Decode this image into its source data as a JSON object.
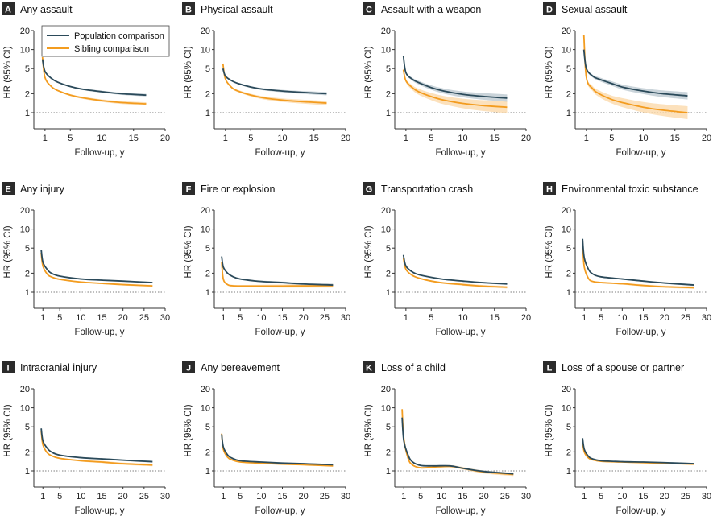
{
  "colors": {
    "population": "#2b4a5a",
    "sibling": "#f39c1f",
    "population_band": "#b8c6cd",
    "sibling_band": "#fbd7a6",
    "letter_box": "#2b2b2b",
    "axis": "#333333"
  },
  "legend": {
    "panel": "A",
    "items": [
      {
        "name": "Population comparison",
        "color": "#2b4a5a"
      },
      {
        "name": "Sibling comparison",
        "color": "#f39c1f"
      }
    ]
  },
  "chart_data": [
    {
      "type": "line",
      "letter": "A",
      "title": "Any assault",
      "xlabel": "Follow-up, y",
      "ylabel": "HR (95% CI)",
      "y_scale": "log",
      "xlim": [
        0,
        20
      ],
      "xticks": [
        1,
        5,
        10,
        15,
        20
      ],
      "yticks": [
        1,
        2,
        5,
        10,
        20
      ],
      "ylim": [
        0.7,
        20
      ],
      "reference_line": 1,
      "x_end": 17,
      "series": [
        {
          "name": "Population comparison",
          "x": [
            0.6,
            1,
            2,
            3,
            5,
            7,
            10,
            13,
            17
          ],
          "y": [
            7.0,
            4.5,
            3.5,
            3.05,
            2.6,
            2.35,
            2.15,
            2.0,
            1.9
          ],
          "band": 0.04
        },
        {
          "name": "Sibling comparison",
          "x": [
            0.6,
            1,
            2,
            3,
            5,
            7,
            10,
            13,
            17
          ],
          "y": [
            7.6,
            3.6,
            2.6,
            2.25,
            1.9,
            1.72,
            1.55,
            1.45,
            1.38
          ],
          "band": 0.05
        }
      ]
    },
    {
      "type": "line",
      "letter": "B",
      "title": "Physical assault",
      "xlabel": "Follow-up, y",
      "ylabel": "HR (95% CI)",
      "y_scale": "log",
      "xlim": [
        0,
        20
      ],
      "xticks": [
        1,
        5,
        10,
        15,
        20
      ],
      "yticks": [
        1,
        2,
        5,
        10,
        20
      ],
      "ylim": [
        0.7,
        20
      ],
      "reference_line": 1,
      "x_end": 17,
      "series": [
        {
          "name": "Population comparison",
          "x": [
            0.6,
            1,
            2,
            3,
            5,
            7,
            10,
            13,
            17
          ],
          "y": [
            5.0,
            3.8,
            3.2,
            2.9,
            2.55,
            2.35,
            2.2,
            2.1,
            2.0
          ],
          "band": 0.05
        },
        {
          "name": "Sibling comparison",
          "x": [
            0.6,
            1,
            2,
            3,
            5,
            7,
            10,
            13,
            17
          ],
          "y": [
            6.0,
            3.4,
            2.5,
            2.2,
            1.9,
            1.72,
            1.58,
            1.5,
            1.42
          ],
          "band": 0.07
        }
      ]
    },
    {
      "type": "line",
      "letter": "C",
      "title": "Assault with a weapon",
      "xlabel": "Follow-up, y",
      "ylabel": "HR (95% CI)",
      "y_scale": "log",
      "xlim": [
        0,
        20
      ],
      "xticks": [
        1,
        5,
        10,
        15,
        20
      ],
      "yticks": [
        1,
        2,
        5,
        10,
        20
      ],
      "ylim": [
        0.7,
        20
      ],
      "reference_line": 1,
      "x_end": 17,
      "series": [
        {
          "name": "Population comparison",
          "x": [
            0.6,
            1,
            2,
            3,
            5,
            7,
            10,
            13,
            17
          ],
          "y": [
            8.0,
            4.3,
            3.4,
            3.0,
            2.5,
            2.2,
            1.95,
            1.82,
            1.7
          ],
          "band": 0.12
        },
        {
          "name": "Sibling comparison",
          "x": [
            0.6,
            1,
            2,
            3,
            5,
            7,
            10,
            13,
            17
          ],
          "y": [
            4.8,
            3.2,
            2.5,
            2.15,
            1.8,
            1.58,
            1.4,
            1.3,
            1.22
          ],
          "band": 0.2
        }
      ]
    },
    {
      "type": "line",
      "letter": "D",
      "title": "Sexual assault",
      "xlabel": "Follow-up, y",
      "ylabel": "HR (95% CI)",
      "y_scale": "log",
      "xlim": [
        0,
        20
      ],
      "xticks": [
        1,
        5,
        10,
        15,
        20
      ],
      "yticks": [
        1,
        2,
        5,
        10,
        20
      ],
      "ylim": [
        0.7,
        20
      ],
      "reference_line": 1,
      "x_end": 17,
      "series": [
        {
          "name": "Population comparison",
          "x": [
            0.6,
            1,
            2,
            3,
            5,
            7,
            10,
            13,
            17
          ],
          "y": [
            10.0,
            5.0,
            3.8,
            3.4,
            2.9,
            2.5,
            2.2,
            2.0,
            1.85
          ],
          "band": 0.12
        },
        {
          "name": "Sibling comparison",
          "x": [
            0.6,
            1,
            2,
            3,
            5,
            7,
            10,
            13,
            17
          ],
          "y": [
            17.0,
            3.6,
            2.4,
            2.0,
            1.62,
            1.42,
            1.22,
            1.1,
            1.0
          ],
          "band": 0.22
        }
      ]
    },
    {
      "type": "line",
      "letter": "E",
      "title": "Any injury",
      "xlabel": "Follow-up, y",
      "ylabel": "HR (95% CI)",
      "y_scale": "log",
      "xlim": [
        0,
        30
      ],
      "xticks": [
        1,
        5,
        10,
        15,
        20,
        25,
        30
      ],
      "yticks": [
        1,
        2,
        5,
        10,
        20
      ],
      "ylim": [
        0.7,
        20
      ],
      "reference_line": 1,
      "x_end": 27,
      "series": [
        {
          "name": "Population comparison",
          "x": [
            0.6,
            1,
            2,
            3,
            5,
            10,
            15,
            20,
            27
          ],
          "y": [
            4.7,
            3.0,
            2.3,
            2.0,
            1.8,
            1.62,
            1.55,
            1.5,
            1.42
          ],
          "band": 0.02
        },
        {
          "name": "Sibling comparison",
          "x": [
            0.6,
            1,
            2,
            3,
            5,
            10,
            15,
            20,
            27
          ],
          "y": [
            4.2,
            2.6,
            1.95,
            1.75,
            1.6,
            1.45,
            1.38,
            1.32,
            1.26
          ],
          "band": 0.03
        }
      ]
    },
    {
      "type": "line",
      "letter": "F",
      "title": "Fire or explosion",
      "xlabel": "Follow-up, y",
      "ylabel": "HR (95% CI)",
      "y_scale": "log",
      "xlim": [
        0,
        30
      ],
      "xticks": [
        1,
        5,
        10,
        15,
        20,
        25,
        30
      ],
      "yticks": [
        1,
        2,
        5,
        10,
        20
      ],
      "ylim": [
        0.7,
        20
      ],
      "reference_line": 1,
      "x_end": 27,
      "series": [
        {
          "name": "Population comparison",
          "x": [
            0.6,
            1,
            2,
            3,
            5,
            10,
            15,
            20,
            27
          ],
          "y": [
            3.7,
            2.5,
            2.0,
            1.8,
            1.62,
            1.48,
            1.42,
            1.35,
            1.3
          ],
          "band": 0.04
        },
        {
          "name": "Sibling comparison",
          "x": [
            0.6,
            1,
            2,
            3,
            5,
            10,
            15,
            20,
            27
          ],
          "y": [
            3.0,
            1.6,
            1.32,
            1.27,
            1.25,
            1.25,
            1.25,
            1.26,
            1.27
          ],
          "band": 0.06
        }
      ]
    },
    {
      "type": "line",
      "letter": "G",
      "title": "Transportation crash",
      "xlabel": "Follow-up, y",
      "ylabel": "HR (95% CI)",
      "y_scale": "log",
      "xlim": [
        0,
        20
      ],
      "xticks": [
        1,
        5,
        10,
        15,
        20
      ],
      "yticks": [
        1,
        2,
        5,
        10,
        20
      ],
      "ylim": [
        0.7,
        20
      ],
      "reference_line": 1,
      "x_end": 17,
      "series": [
        {
          "name": "Population comparison",
          "x": [
            0.6,
            1,
            2,
            3,
            5,
            7,
            10,
            13,
            17
          ],
          "y": [
            3.9,
            2.6,
            2.1,
            1.9,
            1.72,
            1.6,
            1.5,
            1.42,
            1.35
          ],
          "band": 0.03
        },
        {
          "name": "Sibling comparison",
          "x": [
            0.6,
            1,
            2,
            3,
            5,
            7,
            10,
            13,
            17
          ],
          "y": [
            3.5,
            2.3,
            1.85,
            1.68,
            1.5,
            1.4,
            1.32,
            1.25,
            1.2
          ],
          "band": 0.04
        }
      ]
    },
    {
      "type": "line",
      "letter": "H",
      "title": "Environmental toxic substance",
      "xlabel": "Follow-up, y",
      "ylabel": "HR (95% CI)",
      "y_scale": "log",
      "xlim": [
        0,
        30
      ],
      "xticks": [
        1,
        5,
        10,
        15,
        20,
        25,
        30
      ],
      "yticks": [
        1,
        2,
        5,
        10,
        20
      ],
      "ylim": [
        0.7,
        20
      ],
      "reference_line": 1,
      "x_end": 27,
      "series": [
        {
          "name": "Population comparison",
          "x": [
            0.6,
            1,
            2,
            3,
            5,
            10,
            15,
            20,
            27
          ],
          "y": [
            7.0,
            3.5,
            2.3,
            1.95,
            1.75,
            1.62,
            1.5,
            1.4,
            1.3
          ],
          "band": 0.03
        },
        {
          "name": "Sibling comparison",
          "x": [
            0.6,
            1,
            2,
            3,
            5,
            10,
            15,
            20,
            27
          ],
          "y": [
            6.0,
            2.5,
            1.65,
            1.48,
            1.42,
            1.36,
            1.28,
            1.22,
            1.18
          ],
          "band": 0.04
        }
      ]
    },
    {
      "type": "line",
      "letter": "I",
      "title": "Intracranial injury",
      "xlabel": "Follow-up, y",
      "ylabel": "HR (95% CI)",
      "y_scale": "log",
      "xlim": [
        0,
        30
      ],
      "xticks": [
        1,
        5,
        10,
        15,
        20,
        25,
        30
      ],
      "yticks": [
        1,
        2,
        5,
        10,
        20
      ],
      "ylim": [
        0.7,
        20
      ],
      "reference_line": 1,
      "x_end": 27,
      "series": [
        {
          "name": "Population comparison",
          "x": [
            0.6,
            1,
            2,
            3,
            5,
            10,
            15,
            20,
            27
          ],
          "y": [
            4.7,
            3.0,
            2.3,
            2.0,
            1.78,
            1.62,
            1.55,
            1.48,
            1.4
          ],
          "band": 0.03
        },
        {
          "name": "Sibling comparison",
          "x": [
            0.6,
            1,
            2,
            3,
            5,
            10,
            15,
            20,
            27
          ],
          "y": [
            4.3,
            2.6,
            1.95,
            1.75,
            1.58,
            1.45,
            1.38,
            1.3,
            1.24
          ],
          "band": 0.04
        }
      ]
    },
    {
      "type": "line",
      "letter": "J",
      "title": "Any bereavement",
      "xlabel": "Follow-up, y",
      "ylabel": "HR (95% CI)",
      "y_scale": "log",
      "xlim": [
        0,
        30
      ],
      "xticks": [
        1,
        5,
        10,
        15,
        20,
        25,
        30
      ],
      "yticks": [
        1,
        2,
        5,
        10,
        20
      ],
      "ylim": [
        0.7,
        20
      ],
      "reference_line": 1,
      "x_end": 27,
      "series": [
        {
          "name": "Population comparison",
          "x": [
            0.6,
            1,
            2,
            3,
            5,
            10,
            15,
            20,
            27
          ],
          "y": [
            3.8,
            2.4,
            1.8,
            1.6,
            1.45,
            1.38,
            1.33,
            1.3,
            1.25
          ],
          "band": 0.02
        },
        {
          "name": "Sibling comparison",
          "x": [
            0.6,
            1,
            2,
            3,
            5,
            10,
            15,
            20,
            27
          ],
          "y": [
            3.9,
            2.2,
            1.65,
            1.5,
            1.38,
            1.32,
            1.28,
            1.25,
            1.2
          ],
          "band": 0.02
        }
      ]
    },
    {
      "type": "line",
      "letter": "K",
      "title": "Loss of a child",
      "xlabel": "Follow-up, y",
      "ylabel": "HR (95% CI)",
      "y_scale": "log",
      "xlim": [
        0,
        30
      ],
      "xticks": [
        1,
        5,
        10,
        15,
        20,
        25,
        30
      ],
      "yticks": [
        1,
        2,
        5,
        10,
        20
      ],
      "ylim": [
        0.7,
        20
      ],
      "reference_line": 1,
      "x_end": 27,
      "series": [
        {
          "name": "Population comparison",
          "x": [
            0.6,
            1,
            2,
            3,
            5,
            8,
            12,
            15,
            20,
            27
          ],
          "y": [
            7.0,
            3.0,
            1.8,
            1.4,
            1.22,
            1.2,
            1.2,
            1.1,
            0.98,
            0.9
          ],
          "band": 0.03
        },
        {
          "name": "Sibling comparison",
          "x": [
            0.6,
            1,
            2,
            3,
            5,
            8,
            12,
            15,
            20,
            27
          ],
          "y": [
            9.5,
            3.3,
            1.6,
            1.25,
            1.12,
            1.15,
            1.18,
            1.1,
            0.96,
            0.88
          ],
          "band": 0.05
        }
      ]
    },
    {
      "type": "line",
      "letter": "L",
      "title": "Loss of a spouse or partner",
      "xlabel": "Follow-up, y",
      "ylabel": "HR (95% CI)",
      "y_scale": "log",
      "xlim": [
        0,
        30
      ],
      "xticks": [
        1,
        5,
        10,
        15,
        20,
        25,
        30
      ],
      "yticks": [
        1,
        2,
        5,
        10,
        20
      ],
      "ylim": [
        0.7,
        20
      ],
      "reference_line": 1,
      "x_end": 27,
      "series": [
        {
          "name": "Population comparison",
          "x": [
            0.6,
            1,
            2,
            3,
            5,
            10,
            15,
            20,
            27
          ],
          "y": [
            3.3,
            2.2,
            1.7,
            1.55,
            1.45,
            1.4,
            1.38,
            1.35,
            1.3
          ],
          "band": 0.02
        },
        {
          "name": "Sibling comparison",
          "x": [
            0.6,
            1,
            2,
            3,
            5,
            10,
            15,
            20,
            27
          ],
          "y": [
            2.9,
            2.0,
            1.6,
            1.5,
            1.42,
            1.38,
            1.35,
            1.32,
            1.28
          ],
          "band": 0.03
        }
      ]
    }
  ]
}
